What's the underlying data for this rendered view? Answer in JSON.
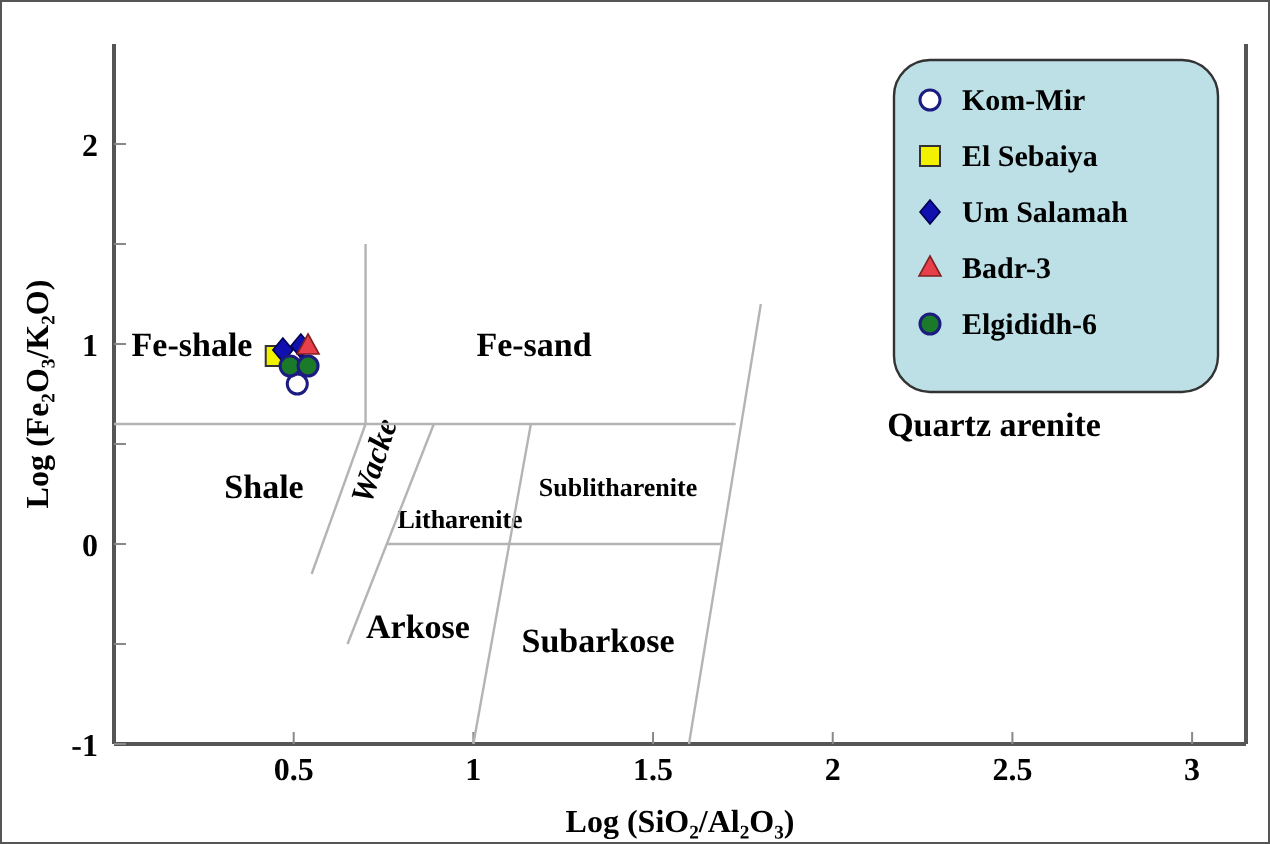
{
  "chart_data": {
    "type": "scatter",
    "xlabel": "Log (SiO₂/Al₂O₃)",
    "ylabel": "Log (Fe₂O₃/K₂O)",
    "xlim": [
      0,
      3.15
    ],
    "ylim": [
      -1,
      2.5
    ],
    "xticks": [
      0.5,
      1.0,
      1.5,
      2.0,
      2.5,
      3.0
    ],
    "yticks": [
      -1,
      {
        "value": -0.5,
        "label": null
      },
      0,
      {
        "value": 0.5,
        "label": null
      },
      1,
      {
        "value": 1.5,
        "label": null
      },
      2
    ],
    "grid": false,
    "legend": "top right",
    "series": [
      {
        "type": "line",
        "color": "#b4b4b4",
        "x": [
          0.55,
          0.7,
          0.7
        ],
        "values": [
          -0.15,
          0.6,
          1.5
        ],
        "marker": "none"
      },
      {
        "type": "line",
        "color": "#b4b4b4",
        "x": [
          0,
          1.73
        ],
        "values": [
          0.6,
          0.6
        ],
        "marker": "none"
      },
      {
        "type": "line",
        "color": "#b4b4b4",
        "x": [
          0.76,
          1.69
        ],
        "values": [
          0,
          0
        ],
        "marker": "none"
      },
      {
        "type": "line",
        "color": "#b4b4b4",
        "x": [
          1.6,
          1.8
        ],
        "values": [
          -1,
          1.2
        ],
        "marker": "none"
      },
      {
        "type": "line",
        "color": "#b4b4b4",
        "x": [
          0.65,
          0.89
        ],
        "values": [
          -0.5,
          0.6
        ],
        "marker": "none"
      },
      {
        "type": "line",
        "color": "#b4b4b4",
        "x": [
          1.0,
          1.16
        ],
        "values": [
          -1,
          0.6
        ],
        "marker": "none"
      },
      {
        "name": "Kom-Mir",
        "color": "#ffffff",
        "marker": "circle",
        "x": [
          0.51
        ],
        "values": [
          0.8
        ]
      },
      {
        "name": "El Sebaiya",
        "color": "#f2f200",
        "marker": "square",
        "x": [
          0.45
        ],
        "values": [
          0.94
        ]
      },
      {
        "name": "Um Salamah",
        "color": "#1010b0",
        "marker": "diamond",
        "x": [
          0.47,
          0.52
        ],
        "values": [
          0.97,
          0.99
        ]
      },
      {
        "name": "Badr-3",
        "color": "#e8404a",
        "marker": "triangle",
        "x": [
          0.54
        ],
        "values": [
          0.99
        ]
      },
      {
        "name": "Elgididh-6",
        "color": "#1a7a2a",
        "marker": "circle",
        "x": [
          0.49,
          0.54
        ],
        "values": [
          0.89,
          0.89
        ]
      }
    ],
    "annotations": [
      "Fe-shale",
      "Fe-sand",
      "Quartz arenite",
      "Shale",
      "Wacke",
      "Litharenite",
      "Sublitharenite",
      "Arkose",
      "Subarkose"
    ]
  }
}
